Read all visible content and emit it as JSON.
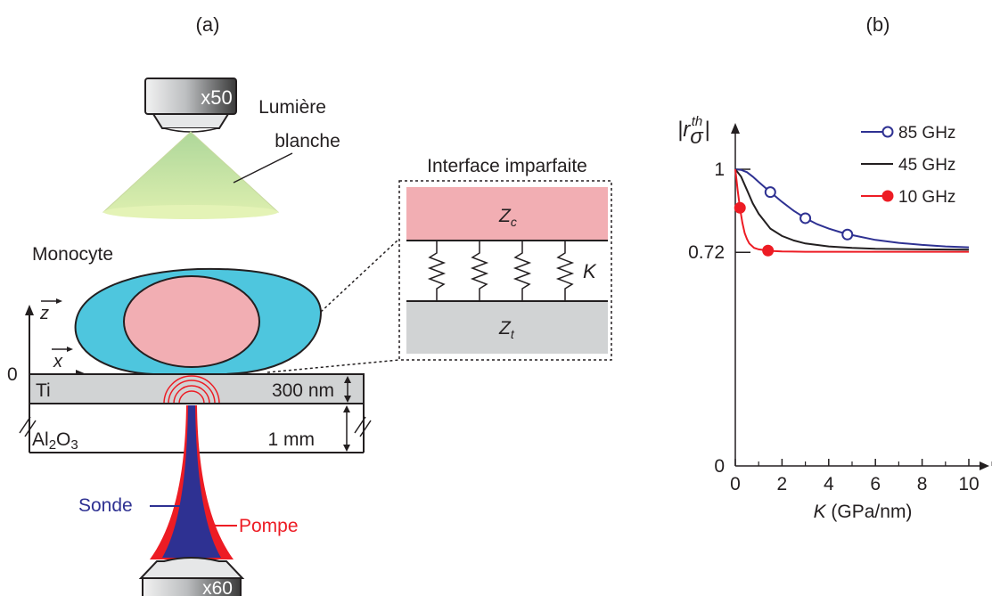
{
  "panel_a": {
    "label": "(a)",
    "objective_top": "x50",
    "light_label_line1": "Lumière",
    "light_label_line2": "blanche",
    "cell_label": "Monocyte",
    "axis_z": "z",
    "axis_x": "x",
    "origin": "0",
    "layer_ti": "Ti",
    "layer_sub_pre": "Al",
    "layer_sub_sub1": "2",
    "layer_sub_mid": "O",
    "layer_sub_sub2": "3",
    "thickness_ti": "300 nm",
    "thickness_sub": "1 mm",
    "probe_label": "Sonde",
    "pump_label": "Pompe",
    "objective_bottom": "x60",
    "inset_title": "Interface imparfaite",
    "z_top": "Z",
    "z_top_sub": "c",
    "z_bottom": "Z",
    "z_bottom_sub": "t",
    "spring_label": "K",
    "colors": {
      "cell_cytoplasm": "#4ec6de",
      "cell_nucleus": "#f2aeb3",
      "layer_grey": "#d1d3d4",
      "light_cone": "#c9e7a8",
      "probe": "#2e3192",
      "pump": "#ed1c24"
    }
  },
  "panel_b": {
    "label": "(b)",
    "ylabel_main": "|r",
    "ylabel_sup": "th",
    "ylabel_sub": "σ",
    "ylabel_end": "|",
    "xlabel_var": "K",
    "xlabel_unit": " (GPa/nm)"
  },
  "chart_data": {
    "type": "line",
    "title": "",
    "xlabel": "K (GPa/nm)",
    "ylabel": "|r_σ^th|",
    "xlim": [
      0,
      10.5
    ],
    "ylim": [
      0,
      1.0
    ],
    "x_ticks": [
      0,
      2,
      4,
      6,
      8,
      10
    ],
    "x_tick_labels": [
      "0",
      "2",
      "4",
      "6",
      "8",
      "10"
    ],
    "y_ticks": [
      0,
      0.72,
      1
    ],
    "y_tick_labels": [
      "0",
      "0.72",
      "1"
    ],
    "legend_position": "top-right",
    "series": [
      {
        "name": "85 GHz",
        "color": "#2e3192",
        "marker": "open-circle",
        "x": [
          0,
          0.25,
          0.5,
          0.75,
          1.0,
          1.25,
          1.5,
          2.0,
          2.5,
          3.0,
          3.5,
          4.0,
          4.5,
          5.0,
          6.0,
          7.0,
          8.0,
          9.0,
          10.0
        ],
        "y": [
          1.0,
          0.998,
          0.99,
          0.975,
          0.957,
          0.94,
          0.923,
          0.89,
          0.86,
          0.835,
          0.815,
          0.8,
          0.788,
          0.778,
          0.762,
          0.752,
          0.745,
          0.74,
          0.737
        ],
        "marker_x": [
          1.5,
          3.0,
          4.8
        ],
        "marker_y": [
          0.923,
          0.835,
          0.78
        ]
      },
      {
        "name": "45 GHz",
        "color": "#231f20",
        "marker": "none",
        "x": [
          0,
          0.25,
          0.5,
          0.75,
          1.0,
          1.5,
          2.0,
          2.5,
          3.0,
          4.0,
          5.0,
          6.0,
          8.0,
          10.0
        ],
        "y": [
          1.0,
          0.975,
          0.93,
          0.885,
          0.85,
          0.8,
          0.775,
          0.76,
          0.75,
          0.74,
          0.735,
          0.732,
          0.73,
          0.729
        ],
        "marker_x": [],
        "marker_y": []
      },
      {
        "name": "10 GHz",
        "color": "#ed1c24",
        "marker": "filled-circle",
        "x": [
          0,
          0.1,
          0.2,
          0.3,
          0.4,
          0.5,
          0.6,
          0.8,
          1.0,
          1.5,
          2.0,
          3.0,
          5.0,
          10.0
        ],
        "y": [
          1.0,
          0.93,
          0.87,
          0.82,
          0.785,
          0.765,
          0.75,
          0.735,
          0.73,
          0.725,
          0.723,
          0.722,
          0.722,
          0.722
        ],
        "marker_x": [
          0.2,
          1.4
        ],
        "marker_y": [
          0.87,
          0.726
        ]
      }
    ]
  }
}
